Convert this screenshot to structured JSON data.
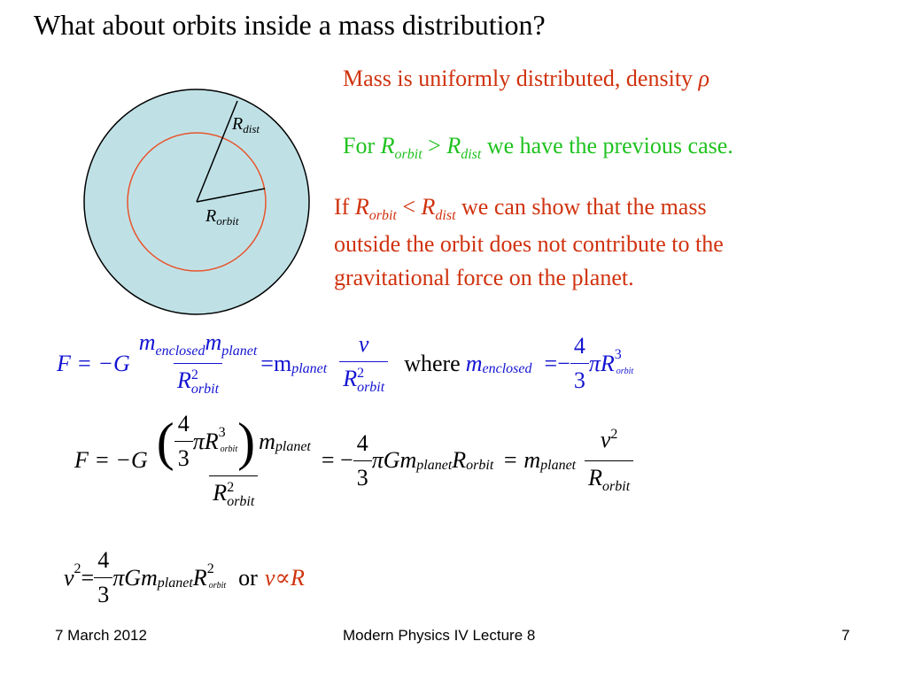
{
  "slide": {
    "title": "What about orbits inside a mass distribution?",
    "diagram": {
      "fill_color": "#bfe1e6",
      "orbit_color": "#e8542c",
      "label_rdist_main": "R",
      "label_rdist_sub": "dist",
      "label_rorbit_main": "R",
      "label_rorbit_sub": "orbit"
    },
    "text": {
      "line1": "Mass is uniformly distributed, density ",
      "line1_symbol": "ρ",
      "line2_prefix": "For ",
      "line2_r": "R",
      "line2_orbit": "orbit",
      "line2_op": " > ",
      "line2_r2": "R",
      "line2_dist": "dist",
      "line2_suffix": " we have the previous case.",
      "line3_prefix": "If ",
      "line3_r": "R",
      "line3_orbit": "orbit",
      "line3_op": " < ",
      "line3_r2": "R",
      "line3_dist": "dist",
      "line3_suffix": " we can show that the mass",
      "line4": "outside the orbit does not contribute to the",
      "line5": "gravitational force on the planet."
    },
    "eq1": {
      "lhs": "F = −G",
      "num_m1": "m",
      "num_sub1": "enclosed",
      "num_m2": "m",
      "num_sub2": "planet",
      "den_r": "R",
      "den_sup": "2",
      "den_sub": "orbit",
      "eq_m": "=m",
      "eq_sub": "planet",
      "v": "v",
      "where": "where",
      "m_enc": "m",
      "m_enc_sub": "enclosed",
      "eq2": "= ",
      "four": "4",
      "three": "3",
      "pi_r": "πR",
      "r_sup": "3",
      "r_sub": "orbit"
    },
    "eq2": {
      "lhs": "F = −G",
      "four": "4",
      "three": "3",
      "pi_r": "πR",
      "r_sup": "3",
      "r_sub": "orbit",
      "m": "m",
      "m_sub": "planet",
      "den_r": "R",
      "den_sup": "2",
      "den_sub": "orbit",
      "eq_minus": "= −",
      "gm": "πGm",
      "gm_sub": "planet",
      "r": "R",
      "r2_sub": "orbit",
      "eq_m": "= m",
      "eq_m_sub": "planet",
      "v": "v",
      "v_sup": "2",
      "rden": "R",
      "rden_sub": "orbit"
    },
    "eq3": {
      "v": "v",
      "v_sup": "2",
      "eq": " = ",
      "four": "4",
      "three": "3",
      "gm": "πGm",
      "gm_sub": "planet",
      "r": "R",
      "r_sup": "2",
      "r_sub": "orbit",
      "or": "or",
      "prop_v": "v",
      "prop_sym": " ∝ ",
      "prop_r": "R"
    },
    "footer": {
      "date": "7 March 2012",
      "center": "Modern Physics IV Lecture 8",
      "page": "7"
    }
  }
}
